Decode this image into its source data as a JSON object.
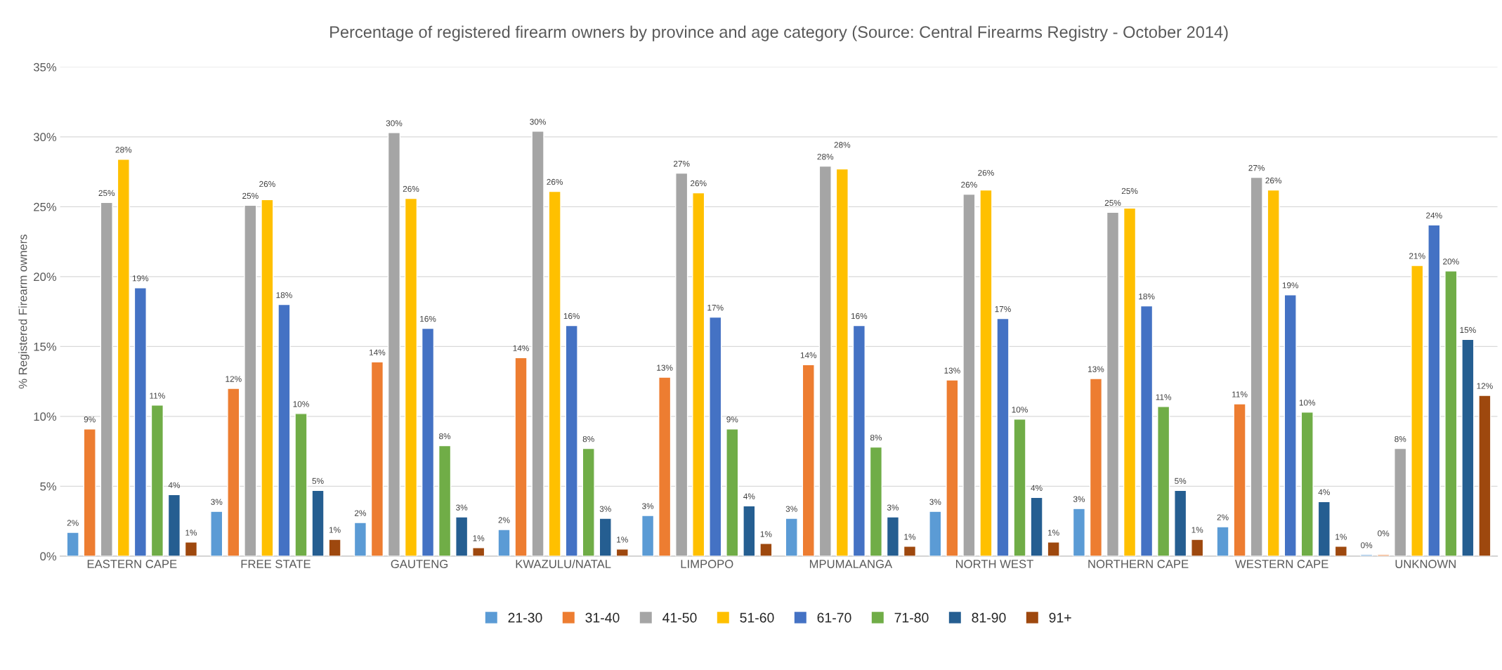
{
  "chart_data": {
    "type": "bar",
    "title": "Percentage of registered firearm owners by province and age category (Source: Central Firearms Registry - October 2014)",
    "ylabel": "% Registered Firearm owners",
    "categories": [
      "EASTERN CAPE",
      "FREE STATE",
      "GAUTENG",
      "KWAZULU/NATAL",
      "LIMPOPO",
      "MPUMALANGA",
      "NORTH WEST",
      "NORTHERN CAPE",
      "WESTERN CAPE",
      "UNKNOWN"
    ],
    "series": [
      {
        "name": "21-30",
        "color": "#5b9bd5",
        "values": [
          1.7,
          3.2,
          2.4,
          1.9,
          2.9,
          2.7,
          3.2,
          3.4,
          2.1,
          0.1
        ],
        "value_labels": [
          "2%",
          "3%",
          "2%",
          "2%",
          "3%",
          "3%",
          "3%",
          "3%",
          "2%",
          "0%"
        ]
      },
      {
        "name": "31-40",
        "color": "#ed7d31",
        "values": [
          9.1,
          12.0,
          13.9,
          14.2,
          12.8,
          13.7,
          12.6,
          12.7,
          10.9,
          0.1
        ],
        "value_labels": [
          "9%",
          "12%",
          "14%",
          "14%",
          "13%",
          "14%",
          "13%",
          "13%",
          "11%",
          "0%"
        ]
      },
      {
        "name": "41-50",
        "color": "#a5a5a5",
        "values": [
          25.3,
          25.1,
          30.3,
          30.4,
          27.4,
          27.9,
          25.9,
          24.6,
          27.1,
          7.7
        ],
        "value_labels": [
          "25%",
          "25%",
          "30%",
          "30%",
          "27%",
          "28%",
          "26%",
          "25%",
          "27%",
          "8%"
        ]
      },
      {
        "name": "51-60",
        "color": "#ffc000",
        "values": [
          28.4,
          25.5,
          25.6,
          26.1,
          26.0,
          27.7,
          26.2,
          24.9,
          26.2,
          20.8
        ],
        "value_labels": [
          "28%",
          "26%",
          "26%",
          "26%",
          "26%",
          "28%",
          "26%",
          "25%",
          "26%",
          "21%"
        ]
      },
      {
        "name": "61-70",
        "color": "#4472c4",
        "values": [
          19.2,
          18.0,
          16.3,
          16.5,
          17.1,
          16.5,
          17.0,
          17.9,
          18.7,
          23.7
        ],
        "value_labels": [
          "19%",
          "18%",
          "16%",
          "16%",
          "17%",
          "16%",
          "17%",
          "18%",
          "19%",
          "24%"
        ]
      },
      {
        "name": "71-80",
        "color": "#70ad47",
        "values": [
          10.8,
          10.2,
          7.9,
          7.7,
          9.1,
          7.8,
          9.8,
          10.7,
          10.3,
          20.4
        ],
        "value_labels": [
          "11%",
          "10%",
          "8%",
          "8%",
          "9%",
          "8%",
          "10%",
          "11%",
          "10%",
          "20%"
        ]
      },
      {
        "name": "81-90",
        "color": "#255e91",
        "values": [
          4.4,
          4.7,
          2.8,
          2.7,
          3.6,
          2.8,
          4.2,
          4.7,
          3.9,
          15.5
        ],
        "value_labels": [
          "4%",
          "5%",
          "3%",
          "3%",
          "4%",
          "3%",
          "4%",
          "5%",
          "4%",
          "15%"
        ]
      },
      {
        "name": "91+",
        "color": "#9e480e",
        "values": [
          1.0,
          1.2,
          0.6,
          0.5,
          0.9,
          0.7,
          1.0,
          1.2,
          0.7,
          11.5
        ],
        "value_labels": [
          "1%",
          "1%",
          "1%",
          "1%",
          "1%",
          "1%",
          "1%",
          "1%",
          "1%",
          "12%"
        ]
      }
    ],
    "ylim": [
      0,
      35
    ],
    "yticks": [
      {
        "value": 0,
        "label": "0%"
      },
      {
        "value": 5,
        "label": "5%"
      },
      {
        "value": 10,
        "label": "10%"
      },
      {
        "value": 15,
        "label": "15%"
      },
      {
        "value": 20,
        "label": "20%"
      },
      {
        "value": 25,
        "label": "25%"
      },
      {
        "value": 30,
        "label": "30%"
      },
      {
        "value": 35,
        "label": "35%"
      }
    ],
    "grid": "y",
    "legend": "bottom"
  }
}
